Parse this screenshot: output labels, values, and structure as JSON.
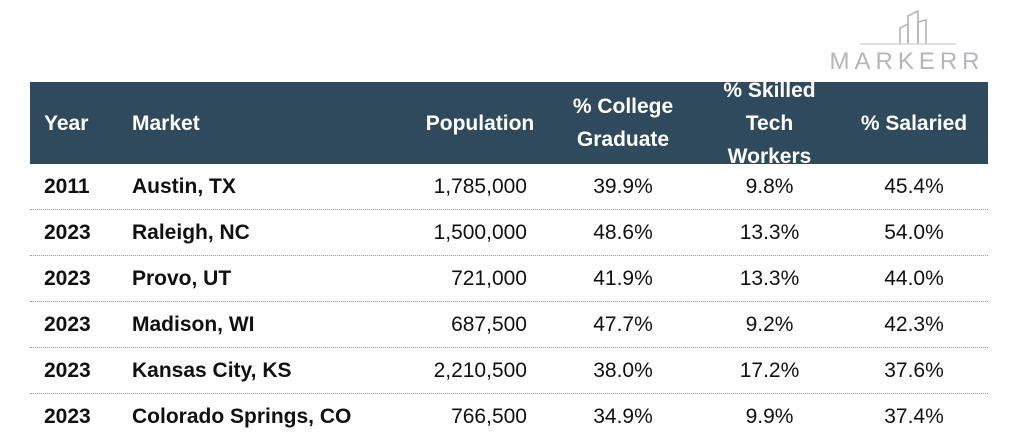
{
  "logo": {
    "text": "MARKERR"
  },
  "chart_data": {
    "type": "table",
    "columns": [
      "Year",
      "Market",
      "Population",
      "% College Graduate",
      "% Skilled Tech Workers",
      "% Salaried"
    ],
    "headers": {
      "year": "Year",
      "market": "Market",
      "population": "Population",
      "college_line1": "% College",
      "college_line2": "Graduate",
      "tech_line1": "% Skilled",
      "tech_line2": "Tech Workers",
      "salaried": "% Salaried"
    },
    "rows": [
      {
        "year": "2011",
        "market": "Austin, TX",
        "population": "1,785,000",
        "college": "39.9%",
        "tech": "9.8%",
        "salaried": "45.4%"
      },
      {
        "year": "2023",
        "market": "Raleigh, NC",
        "population": "1,500,000",
        "college": "48.6%",
        "tech": "13.3%",
        "salaried": "54.0%"
      },
      {
        "year": "2023",
        "market": "Provo, UT",
        "population": "721,000",
        "college": "41.9%",
        "tech": "13.3%",
        "salaried": "44.0%"
      },
      {
        "year": "2023",
        "market": "Madison, WI",
        "population": "687,500",
        "college": "47.7%",
        "tech": "9.2%",
        "salaried": "42.3%"
      },
      {
        "year": "2023",
        "market": "Kansas City, KS",
        "population": "2,210,500",
        "college": "38.0%",
        "tech": "17.2%",
        "salaried": "37.6%"
      },
      {
        "year": "2023",
        "market": "Colorado Springs, CO",
        "population": "766,500",
        "college": "34.9%",
        "tech": "9.9%",
        "salaried": "37.4%"
      }
    ],
    "colors": {
      "header_bg": "#2f4a5c",
      "header_text": "#ffffff",
      "logo": "#b3b6ba"
    }
  }
}
